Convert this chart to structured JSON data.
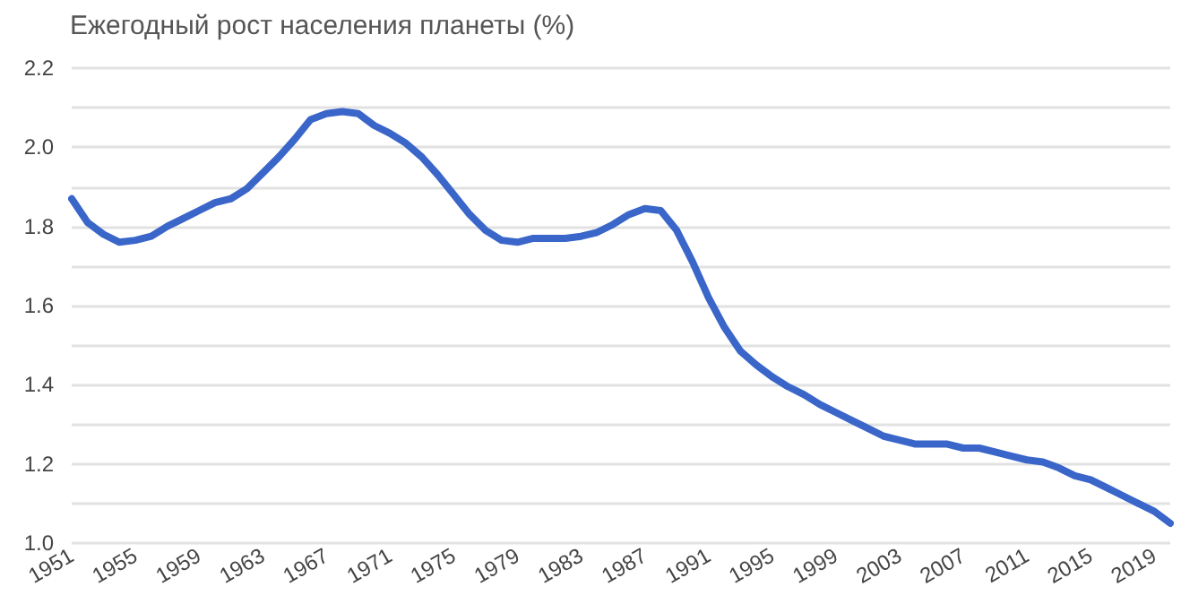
{
  "chart_data": {
    "type": "line",
    "title": "Ежегодный рост населения планеты (%)",
    "x": [
      1951,
      1952,
      1953,
      1954,
      1955,
      1956,
      1957,
      1958,
      1959,
      1960,
      1961,
      1962,
      1963,
      1964,
      1965,
      1966,
      1967,
      1968,
      1969,
      1970,
      1971,
      1972,
      1973,
      1974,
      1975,
      1976,
      1977,
      1978,
      1979,
      1980,
      1981,
      1982,
      1983,
      1984,
      1985,
      1986,
      1987,
      1988,
      1989,
      1990,
      1991,
      1992,
      1993,
      1994,
      1995,
      1996,
      1997,
      1998,
      1999,
      2000,
      2001,
      2002,
      2003,
      2004,
      2005,
      2006,
      2007,
      2008,
      2009,
      2010,
      2011,
      2012,
      2013,
      2014,
      2015,
      2016,
      2017,
      2018,
      2019,
      2020
    ],
    "series": [
      {
        "color": "#3a66c9",
        "values": [
          1.87,
          1.81,
          1.78,
          1.76,
          1.765,
          1.775,
          1.8,
          1.82,
          1.84,
          1.86,
          1.87,
          1.895,
          1.935,
          1.975,
          2.02,
          2.07,
          2.085,
          2.09,
          2.085,
          2.055,
          2.035,
          2.01,
          1.975,
          1.93,
          1.88,
          1.83,
          1.79,
          1.765,
          1.76,
          1.77,
          1.77,
          1.77,
          1.775,
          1.785,
          1.805,
          1.83,
          1.845,
          1.84,
          1.79,
          1.71,
          1.62,
          1.545,
          1.485,
          1.45,
          1.42,
          1.395,
          1.375,
          1.35,
          1.33,
          1.31,
          1.29,
          1.27,
          1.26,
          1.25,
          1.25,
          1.25,
          1.24,
          1.24,
          1.23,
          1.22,
          1.21,
          1.205,
          1.19,
          1.17,
          1.16,
          1.14,
          1.12,
          1.1,
          1.08,
          1.05
        ]
      }
    ],
    "xlim": [
      1951,
      2020
    ],
    "xticks": [
      1951,
      1955,
      1959,
      1963,
      1967,
      1971,
      1975,
      1979,
      1983,
      1987,
      1991,
      1995,
      1999,
      2003,
      2007,
      2011,
      2015,
      2019
    ],
    "ylim": [
      1.0,
      2.2
    ],
    "yticks": [
      {
        "value": 1.0,
        "label": "1.0"
      },
      {
        "value": 1.1,
        "label": null
      },
      {
        "value": 1.2,
        "label": "1.2"
      },
      {
        "value": 1.3,
        "label": null
      },
      {
        "value": 1.4,
        "label": "1.4"
      },
      {
        "value": 1.5,
        "label": null
      },
      {
        "value": 1.6,
        "label": "1.6"
      },
      {
        "value": 1.7,
        "label": null
      },
      {
        "value": 1.8,
        "label": "1.8"
      },
      {
        "value": 1.9,
        "label": null
      },
      {
        "value": 2.0,
        "label": "2.0"
      },
      {
        "value": 2.1,
        "label": null
      },
      {
        "value": 2.2,
        "label": "2.2"
      }
    ],
    "grid": "y",
    "marker": "none",
    "line_style": "solid"
  }
}
